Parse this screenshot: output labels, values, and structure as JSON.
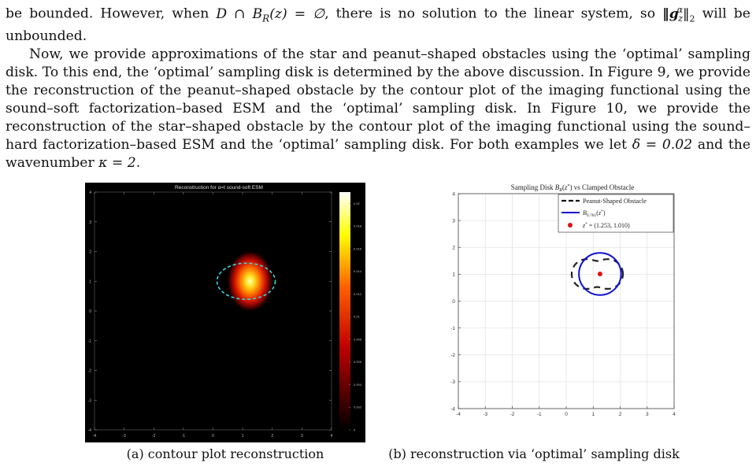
{
  "text": {
    "p1_a": "be bounded.  However, when ",
    "p1_math1": "D ∩ B",
    "p1_math1_sub": "R",
    "p1_math1_rest": "(z) = ∅",
    "p1_b": ", there is no solution to the linear system, so ",
    "p1_norm": "‖g",
    "p1_norm_sup": "α",
    "p1_norm_sub": "z",
    "p1_norm_rest": "‖",
    "p1_norm_sub2": "2",
    "p1_c": " will be unbounded.",
    "p2": "Now, we provide approximations of the star and peanut–shaped obstacles using the ‘optimal’ sampling disk. To this end, the ‘optimal’ sampling disk is determined by the above discussion. In Figure 9, we provide the reconstruction of the peanut–shaped obstacle by the contour plot of the imaging functional using the sound–soft factorization–based ESM and the ‘optimal’ sampling disk. In Figure 10, we provide the reconstruction of the star–shaped obstacle by the contour plot of the imaging functional using the sound–hard factorization–based ESM and the ‘optimal’ sampling disk. For both examples we let ",
    "p2_delta": "δ = 0.02",
    "p2_mid": " and the wavenumber ",
    "p2_kappa": "κ = 2",
    "p2_end": "."
  },
  "captions": {
    "a": "(a) contour plot reconstruction",
    "b": "(b) reconstruction via ‘optimal’ sampling disk"
  },
  "chart_data": [
    {
      "type": "heatmap",
      "title": "Reconstruction for α=t sound-soft ESM",
      "xlim": [
        -4,
        4
      ],
      "ylim": [
        -4,
        4
      ],
      "xticks": [
        "-4",
        "-3",
        "-2",
        "-1",
        "0",
        "1",
        "2",
        "3",
        "4"
      ],
      "yticks": [
        "-4",
        "-3",
        "-2",
        "-1",
        "0",
        "1",
        "2",
        "3",
        "4"
      ],
      "colorbar_ticks": [
        "0",
        "0.002",
        "0.004",
        "0.006",
        "0.008",
        "0.01",
        "0.012",
        "0.014",
        "0.016",
        "0.018",
        "0.02"
      ],
      "colorbar_range": [
        0,
        0.021
      ],
      "colormap": "hot",
      "peak": {
        "x": 1.25,
        "y": 1.0,
        "value": 0.02
      },
      "obstacle_outline_color": "#3ad6e0"
    },
    {
      "type": "line",
      "title": "Sampling Disk B_R(z*) vs Clamped Obstacle",
      "xlim": [
        -4,
        4
      ],
      "ylim": [
        -4,
        4
      ],
      "xticks": [
        "-4",
        "-3",
        "-2",
        "-1",
        "0",
        "1",
        "2",
        "3",
        "4"
      ],
      "yticks": [
        "-4",
        "-3",
        "-2",
        "-1",
        "0",
        "1",
        "2",
        "3",
        "4"
      ],
      "grid": true,
      "legend_position": "top-right",
      "series": [
        {
          "name": "Peanut-Shaped Obstacle",
          "style": "dashed",
          "color": "#222222"
        },
        {
          "name": "B_{0.781}(z*)",
          "style": "solid",
          "color": "#1010d0",
          "center": [
            1.253,
            1.01
          ],
          "radius": 0.781
        },
        {
          "name": "z* = (1.253, 1.010)",
          "style": "point",
          "color": "#e01010",
          "x": 1.253,
          "y": 1.01
        }
      ]
    }
  ]
}
